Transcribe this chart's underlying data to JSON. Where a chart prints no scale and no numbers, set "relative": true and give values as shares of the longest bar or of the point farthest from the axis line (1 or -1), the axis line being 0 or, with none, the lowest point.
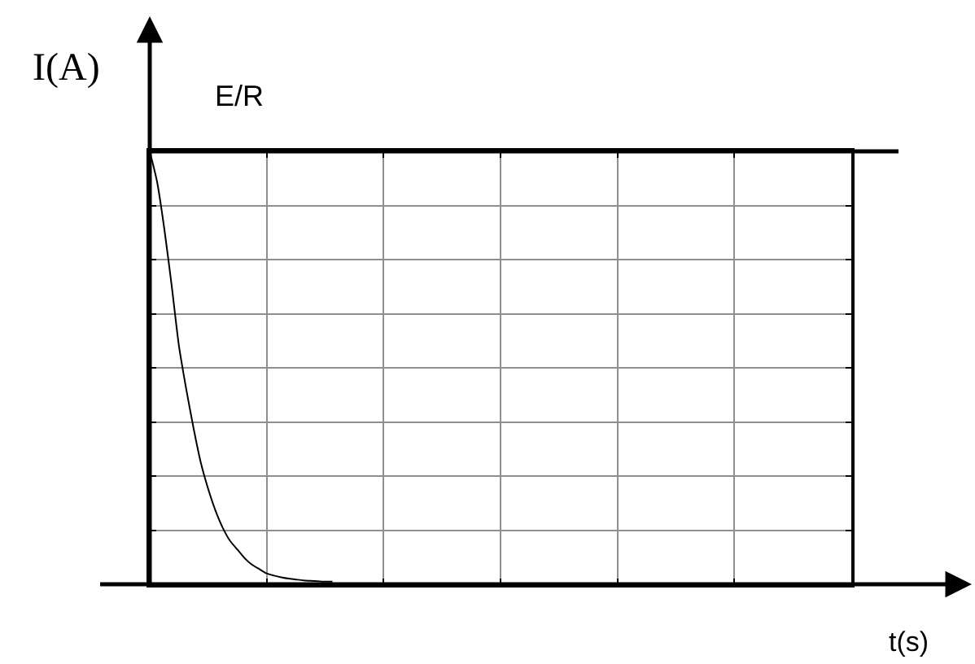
{
  "chart_data": {
    "type": "line",
    "xlabel": "t(s)",
    "ylabel": "I(A)",
    "relative": true,
    "categories": [
      null,
      null,
      null,
      null,
      null,
      null,
      null,
      null,
      null,
      null,
      null,
      null,
      null,
      null,
      null,
      null,
      null,
      null,
      null,
      null,
      null,
      null,
      null,
      null,
      null,
      null,
      null,
      null,
      null,
      null,
      null,
      null,
      null,
      null,
      null,
      null,
      null,
      null,
      null,
      null,
      null,
      null,
      null,
      null,
      null,
      null,
      null,
      null,
      null,
      null,
      null,
      null,
      null,
      null,
      null,
      null,
      null,
      null,
      null,
      null,
      null,
      null,
      null,
      null,
      null,
      null,
      null,
      null,
      null,
      null,
      null,
      null,
      null,
      null,
      null,
      null,
      null,
      null,
      null,
      null,
      null,
      null,
      null,
      null,
      null,
      null,
      null,
      null,
      null,
      null,
      null,
      null,
      null,
      null,
      null,
      null,
      null
    ],
    "series": [
      {
        "color": "#000000",
        "values": [
          1.0,
          0.93,
          0.82,
          0.69,
          0.55,
          0.45,
          0.36,
          0.28,
          0.22,
          0.17,
          0.13,
          0.1,
          0.08,
          0.06,
          0.045,
          0.035,
          0.025,
          0.02,
          0.016,
          0.013,
          0.011,
          0.009,
          0.008,
          0.007,
          0.006,
          0.006,
          null,
          null,
          null,
          null,
          null,
          null,
          null,
          null,
          null,
          null,
          null,
          null,
          null,
          null,
          null,
          null,
          null,
          null,
          null,
          null,
          null,
          null,
          null,
          null,
          null,
          null,
          null,
          null,
          null,
          null,
          null,
          null,
          null,
          null,
          null,
          null,
          null,
          null,
          null,
          null,
          null,
          null,
          null,
          null,
          null,
          null,
          null,
          null,
          null,
          null,
          null,
          null,
          null,
          null,
          null,
          null,
          null,
          null,
          null,
          null,
          null,
          null,
          null,
          null,
          null,
          null,
          null,
          null,
          null,
          null,
          null
        ]
      }
    ],
    "ref_lines": [
      {
        "axis": "y",
        "value": 1,
        "label": "E/R",
        "color": "#000000"
      }
    ],
    "grid": true,
    "marker": "none",
    "line_style": "solid"
  }
}
